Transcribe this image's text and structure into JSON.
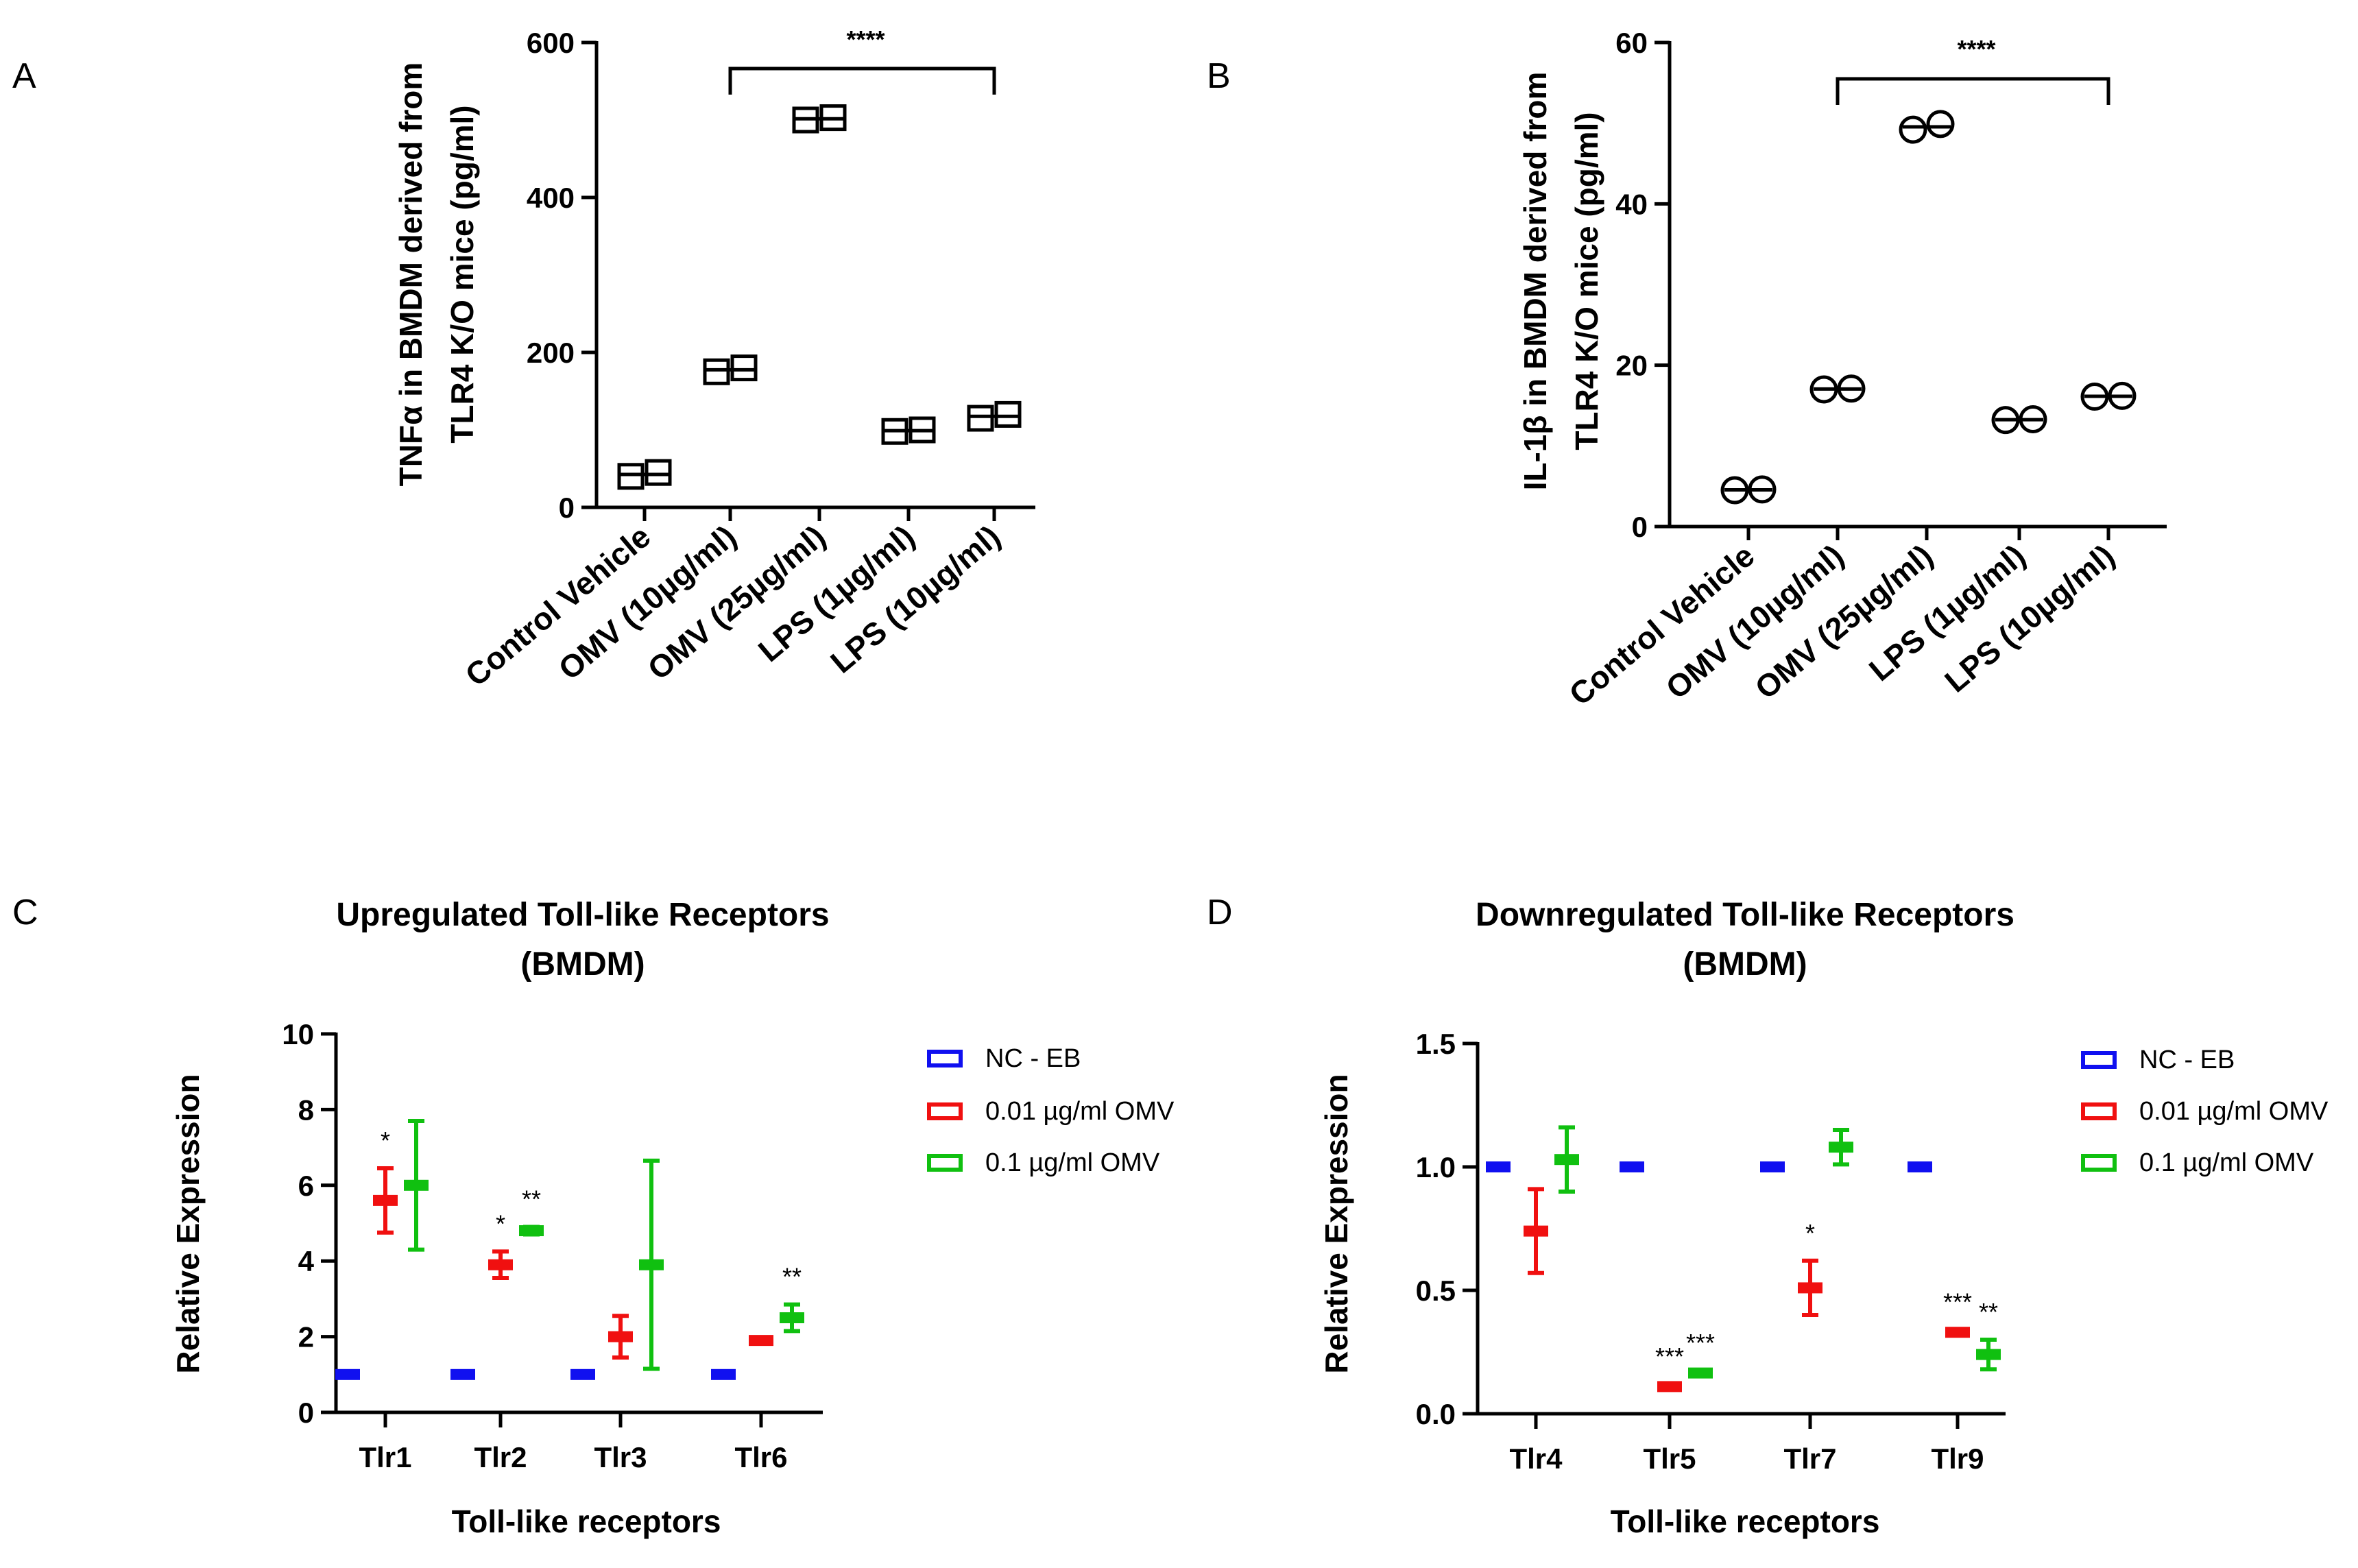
{
  "chart_data": [
    {
      "panel": "A",
      "type": "scatter",
      "ylabel_lines": [
        "TNFα in BMDM derived from",
        "TLR4 K/O mice (pg/ml)"
      ],
      "categories": [
        "Control Vehicle",
        "OMV (10µg/ml)",
        "OMV (25µg/ml)",
        "LPS (1µg/ml)",
        "LPS (10µg/ml)"
      ],
      "values": [
        [
          40,
          45
        ],
        [
          175,
          180
        ],
        [
          500,
          503
        ],
        [
          98,
          100
        ],
        [
          115,
          120
        ]
      ],
      "marker": "square",
      "ylim": [
        0,
        600
      ],
      "yticks": [
        0,
        200,
        400,
        600
      ],
      "ytick_labels": [
        "0",
        "200",
        "400",
        "600"
      ],
      "significance": {
        "from": 1,
        "to": 4,
        "label": "****"
      }
    },
    {
      "panel": "B",
      "type": "scatter",
      "ylabel_lines": [
        "IL-1β in BMDM derived from",
        "TLR4 K/O mice (pg/ml)"
      ],
      "categories": [
        "Control Vehicle",
        "OMV (10µg/ml)",
        "OMV (25µg/ml)",
        "LPS (1µg/ml)",
        "LPS (10µg/ml)"
      ],
      "values": [
        [
          4.5,
          4.6
        ],
        [
          17.0,
          17.1
        ],
        [
          49.2,
          49.9
        ],
        [
          13.2,
          13.3
        ],
        [
          16.1,
          16.2
        ]
      ],
      "marker": "circle",
      "ylim": [
        0,
        60
      ],
      "yticks": [
        0,
        20,
        40,
        60
      ],
      "ytick_labels": [
        "0",
        "20",
        "40",
        "60"
      ],
      "significance": {
        "from": 1,
        "to": 4,
        "label": "****"
      }
    },
    {
      "panel": "C",
      "type": "errorbar",
      "title_lines": [
        "Upregulated Toll-like Receptors",
        "(BMDM)"
      ],
      "xlabel": "Toll-like receptors",
      "ylabel": "Relative Expression",
      "categories": [
        "Tlr1",
        "Tlr2",
        "Tlr3",
        "Tlr6"
      ],
      "ylim": [
        0,
        10
      ],
      "yticks": [
        0,
        2,
        4,
        6,
        8,
        10
      ],
      "ytick_labels": [
        "0",
        "2",
        "4",
        "6",
        "8",
        "10"
      ],
      "series": [
        {
          "name": "NC - EB",
          "color": "#1010f0",
          "values": [
            1.0,
            1.0,
            1.0,
            1.0
          ],
          "err": [
            0,
            0,
            0,
            0
          ],
          "sig": [
            "",
            "",
            "",
            ""
          ]
        },
        {
          "name": "0.01 µg/ml OMV",
          "color": "#f01010",
          "values": [
            5.6,
            3.9,
            2.0,
            1.9
          ],
          "err": [
            0.85,
            0.35,
            0.55,
            0.05
          ],
          "sig": [
            "*",
            "*",
            "",
            ""
          ]
        },
        {
          "name": "0.1 µg/ml OMV",
          "color": "#10c010",
          "values": [
            6.0,
            4.8,
            3.9,
            2.5
          ],
          "err": [
            1.7,
            0.1,
            2.75,
            0.35
          ],
          "sig": [
            "",
            "**",
            "",
            "**"
          ]
        }
      ]
    },
    {
      "panel": "D",
      "type": "errorbar",
      "title_lines": [
        "Downregulated Toll-like Receptors",
        "(BMDM)"
      ],
      "xlabel": "Toll-like receptors",
      "ylabel": "Relative Expression",
      "categories": [
        "Tlr4",
        "Tlr5",
        "Tlr7",
        "Tlr9"
      ],
      "ylim": [
        0,
        1.5
      ],
      "yticks": [
        0.0,
        0.5,
        1.0,
        1.5
      ],
      "ytick_labels": [
        "0.0",
        "0.5",
        "1.0",
        "1.5"
      ],
      "series": [
        {
          "name": "NC - EB",
          "color": "#1010f0",
          "values": [
            1.0,
            1.0,
            1.0,
            1.0
          ],
          "err": [
            0,
            0,
            0,
            0
          ],
          "sig": [
            "",
            "",
            "",
            ""
          ]
        },
        {
          "name": "0.01 µg/ml OMV",
          "color": "#f01010",
          "values": [
            0.74,
            0.11,
            0.51,
            0.33
          ],
          "err": [
            0.17,
            0.01,
            0.11,
            0.01
          ],
          "sig": [
            "",
            "***",
            "*",
            "***"
          ]
        },
        {
          "name": "0.1 µg/ml OMV",
          "color": "#10c010",
          "values": [
            1.03,
            0.165,
            1.08,
            0.24
          ],
          "err": [
            0.13,
            0.01,
            0.07,
            0.06
          ],
          "sig": [
            "",
            "***",
            "",
            "**"
          ]
        }
      ]
    }
  ]
}
